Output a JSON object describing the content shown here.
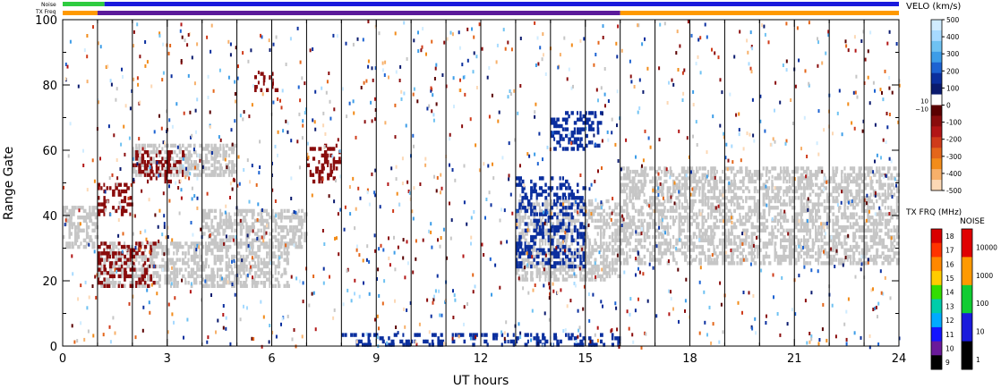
{
  "chart_data": {
    "type": "heatmap",
    "xlabel": "UT hours",
    "ylabel": "Range Gate",
    "xlim": [
      0,
      24
    ],
    "ylim": [
      0,
      100
    ],
    "x_ticks": [
      0,
      3,
      6,
      9,
      12,
      15,
      18,
      21,
      24
    ],
    "y_ticks": [
      0,
      20,
      40,
      60,
      80,
      100
    ],
    "status_bars": {
      "noise_label": "Noise",
      "txfreq_label": "TX Freq",
      "noise_segments": [
        {
          "start": 0,
          "end": 1.2,
          "color": "#2ecc40"
        },
        {
          "start": 1.2,
          "end": 24,
          "color": "#1a1adc"
        }
      ],
      "txfreq_segments": [
        {
          "start": 0,
          "end": 1,
          "color": "#ff9900"
        },
        {
          "start": 1,
          "end": 16,
          "color": "#5b1a9a"
        },
        {
          "start": 16,
          "end": 24,
          "color": "#ff9900"
        }
      ]
    },
    "scan_boundaries": [
      1,
      2,
      3,
      4,
      5,
      6,
      7,
      8,
      9,
      10,
      11,
      12,
      13,
      14,
      15,
      16,
      17,
      18,
      19,
      20,
      21,
      22,
      23
    ],
    "velocity_scale": {
      "title": "VELO (km/s)",
      "ticks": [
        500,
        400,
        300,
        200,
        100,
        0,
        -100,
        -200,
        -300,
        -400,
        -500
      ],
      "side_labels": [
        "10",
        "−10"
      ],
      "colors": [
        "#d0ecff",
        "#a7daff",
        "#6fc2f2",
        "#3d9de8",
        "#1d63d2",
        "#0b2f9e",
        "#0a1a6e",
        "#ffffff",
        "#5a0000",
        "#8a0d0d",
        "#b21616",
        "#cf3b1a",
        "#e4661a",
        "#f28c1a",
        "#f7b06a",
        "#fcd8b5"
      ]
    },
    "txfreq_scale": {
      "title": "TX FRQ (MHz)",
      "ticks": [
        18,
        17,
        16,
        15,
        14,
        13,
        12,
        11,
        10,
        9
      ],
      "colors": [
        "#d90000",
        "#ff3300",
        "#ff8800",
        "#ffcc00",
        "#33dd00",
        "#00ccaa",
        "#00aaff",
        "#1414ff",
        "#6a1a9a",
        "#000000"
      ]
    },
    "noise_scale": {
      "title": "NOISE",
      "ticks": [
        10000,
        1000,
        100,
        10,
        1
      ],
      "colors": [
        "#e00000",
        "#ff9900",
        "#11cc33",
        "#1a1adc",
        "#000000"
      ]
    },
    "echo_regions": [
      {
        "label": "ground scatter",
        "color": "#c6c6c6",
        "x0": 0,
        "x1": 1,
        "y0": 30,
        "y1": 43
      },
      {
        "label": "ground scatter",
        "color": "#c6c6c6",
        "x0": 1,
        "x1": 6.5,
        "y0": 18,
        "y1": 32
      },
      {
        "label": "ground scatter",
        "color": "#c6c6c6",
        "x0": 4,
        "x1": 7,
        "y0": 30,
        "y1": 42
      },
      {
        "label": "ground scatter",
        "color": "#c6c6c6",
        "x0": 2,
        "x1": 5,
        "y0": 52,
        "y1": 62
      },
      {
        "label": "ground scatter",
        "color": "#c6c6c6",
        "x0": 13,
        "x1": 16,
        "y0": 20,
        "y1": 45
      },
      {
        "label": "ground scatter",
        "color": "#c6c6c6",
        "x0": 16,
        "x1": 24,
        "y0": 25,
        "y1": 55
      },
      {
        "label": "negative velocity",
        "color": "#8a0d0d",
        "x0": 1,
        "x1": 2.7,
        "y0": 18,
        "y1": 32
      },
      {
        "label": "negative velocity",
        "color": "#8a0d0d",
        "x0": 1,
        "x1": 2,
        "y0": 40,
        "y1": 50
      },
      {
        "label": "negative velocity",
        "color": "#8a0d0d",
        "x0": 2,
        "x1": 3.5,
        "y0": 50,
        "y1": 60
      },
      {
        "label": "negative velocity",
        "color": "#8a0d0d",
        "x0": 5.5,
        "x1": 6.2,
        "y0": 78,
        "y1": 84
      },
      {
        "label": "negative velocity",
        "color": "#8a0d0d",
        "x0": 7,
        "x1": 8,
        "y0": 50,
        "y1": 62
      },
      {
        "label": "positive velocity",
        "color": "#0b2f9e",
        "x0": 8,
        "x1": 16,
        "y0": 0,
        "y1": 4
      },
      {
        "label": "positive velocity",
        "color": "#0b2f9e",
        "x0": 13,
        "x1": 15,
        "y0": 24,
        "y1": 52
      },
      {
        "label": "positive velocity",
        "color": "#0b2f9e",
        "x0": 14,
        "x1": 15.5,
        "y0": 60,
        "y1": 72
      }
    ]
  }
}
